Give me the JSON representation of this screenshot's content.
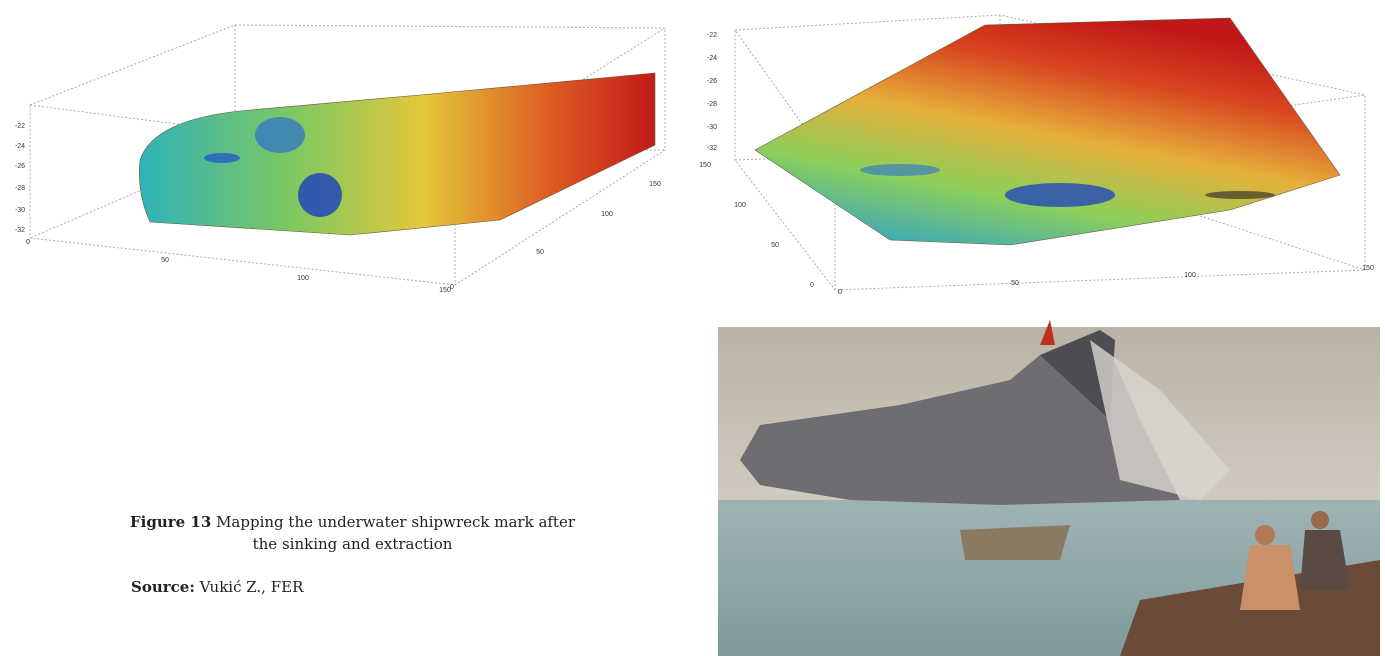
{
  "figures": [
    {
      "zticks": [
        "-22",
        "-24",
        "-26",
        "-28",
        "-30",
        "-32"
      ],
      "xticks": [
        "0",
        "50",
        "100",
        "150"
      ],
      "yticks": [
        "0",
        "50",
        "100",
        "150"
      ]
    },
    {
      "zticks": [
        "-22",
        "-24",
        "-26",
        "-28",
        "-30",
        "-32"
      ],
      "xticks": [
        "0",
        "50",
        "100",
        "150"
      ],
      "yticks": [
        "0",
        "50",
        "100",
        "150"
      ]
    }
  ],
  "caption": {
    "label": "Figure 13",
    "text": "Mapping the underwater shipwreck mark after the sinking and extraction"
  },
  "source": {
    "label": "Source:",
    "text": "Vukić Z., FER"
  }
}
